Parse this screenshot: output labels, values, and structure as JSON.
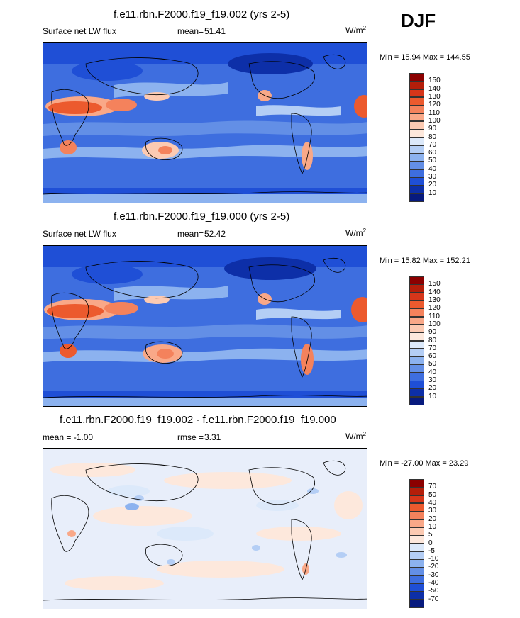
{
  "season": "DJF",
  "panels": [
    {
      "id": "control",
      "title": "f.e11.rbn.F2000.f19_f19.002 (yrs 2-5)",
      "left_label": "Surface net LW flux",
      "stat_label": "mean=",
      "stat_value": "51.41",
      "units_base": "W/m",
      "units_exp": "2",
      "minmax": "Min =  15.94 Max = 144.55",
      "levels": [
        "150",
        "140",
        "130",
        "120",
        "110",
        "100",
        "90",
        "80",
        "70",
        "60",
        "50",
        "40",
        "30",
        "20",
        "10"
      ],
      "colors": [
        "#8b0000",
        "#b41e0a",
        "#d6361a",
        "#ec5a2e",
        "#f4825c",
        "#f9a888",
        "#fccab2",
        "#fde8dc",
        "#dce9fa",
        "#b4cef5",
        "#8cb2ef",
        "#638fe6",
        "#3e6edf",
        "#1f4fd6",
        "#0d2fa8",
        "#071a7e"
      ]
    },
    {
      "id": "case",
      "title": "f.e11.rbn.F2000.f19_f19.000 (yrs 2-5)",
      "left_label": "Surface net LW flux",
      "stat_label": "mean=",
      "stat_value": "52.42",
      "units_base": "W/m",
      "units_exp": "2",
      "minmax": "Min =  15.82 Max = 152.21",
      "levels": [
        "150",
        "140",
        "130",
        "120",
        "110",
        "100",
        "90",
        "80",
        "70",
        "60",
        "50",
        "40",
        "30",
        "20",
        "10"
      ],
      "colors": [
        "#8b0000",
        "#b41e0a",
        "#d6361a",
        "#ec5a2e",
        "#f4825c",
        "#f9a888",
        "#fccab2",
        "#fde8dc",
        "#dce9fa",
        "#b4cef5",
        "#8cb2ef",
        "#638fe6",
        "#3e6edf",
        "#1f4fd6",
        "#0d2fa8",
        "#071a7e"
      ]
    },
    {
      "id": "difference",
      "title": "f.e11.rbn.F2000.f19_f19.002 - f.e11.rbn.F2000.f19_f19.000",
      "left_label": "mean =  -1.00",
      "stat_label": "rmse =",
      "stat_value": "3.31",
      "units_base": "W/m",
      "units_exp": "2",
      "minmax": "Min = -27.00 Max =  23.29",
      "levels": [
        "70",
        "50",
        "40",
        "30",
        "20",
        "10",
        "5",
        "0",
        "-5",
        "-10",
        "-20",
        "-30",
        "-40",
        "-50",
        "-70"
      ],
      "colors": [
        "#8b0000",
        "#b41e0a",
        "#d6361a",
        "#ec5a2e",
        "#f4825c",
        "#f9a888",
        "#fccab2",
        "#fde8dc",
        "#dce9fa",
        "#b4cef5",
        "#8cb2ef",
        "#638fe6",
        "#3e6edf",
        "#1f4fd6",
        "#0d2fa8",
        "#071a7e"
      ]
    }
  ],
  "chart_data": [
    {
      "type": "heatmap",
      "title": "f.e11.rbn.F2000.f19_f19.002 (yrs 2-5)",
      "variable": "Surface net LW flux",
      "units": "W/m2",
      "mean": 51.41,
      "min": 15.94,
      "max": 144.55,
      "contour_levels": [
        10,
        20,
        30,
        40,
        50,
        60,
        70,
        80,
        90,
        100,
        110,
        120,
        130,
        140,
        150
      ]
    },
    {
      "type": "heatmap",
      "title": "f.e11.rbn.F2000.f19_f19.000 (yrs 2-5)",
      "variable": "Surface net LW flux",
      "units": "W/m2",
      "mean": 52.42,
      "min": 15.82,
      "max": 152.21,
      "contour_levels": [
        10,
        20,
        30,
        40,
        50,
        60,
        70,
        80,
        90,
        100,
        110,
        120,
        130,
        140,
        150
      ]
    },
    {
      "type": "heatmap",
      "title": "f.e11.rbn.F2000.f19_f19.002 - f.e11.rbn.F2000.f19_f19.000",
      "units": "W/m2",
      "mean": -1.0,
      "rmse": 3.31,
      "min": -27.0,
      "max": 23.29,
      "contour_levels": [
        -70,
        -50,
        -40,
        -30,
        -20,
        -10,
        -5,
        0,
        5,
        10,
        20,
        30,
        40,
        50,
        70
      ]
    }
  ]
}
